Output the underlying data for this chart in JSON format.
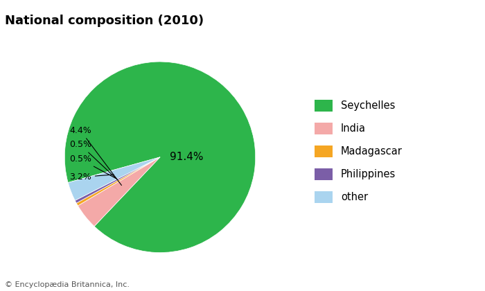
{
  "title": "National composition (2010)",
  "labels": [
    "Seychelles",
    "India",
    "Madagascar",
    "Philippines",
    "other"
  ],
  "values": [
    91.4,
    4.4,
    0.5,
    0.5,
    3.2
  ],
  "colors": [
    "#2db54b",
    "#f4a9a8",
    "#f5a623",
    "#7b5ea7",
    "#aad4ef"
  ],
  "background_color": "#ffffff",
  "title_fontsize": 13,
  "copyright_text": "© Encyclopædia Britannica, Inc.",
  "legend_labels": [
    "Seychelles",
    "India",
    "Madagascar",
    "Philippines",
    "other"
  ],
  "pie_label_text": "91.4%",
  "annot_labels": [
    "4.4%",
    "0.5%",
    "0.5%",
    "3.2%"
  ]
}
